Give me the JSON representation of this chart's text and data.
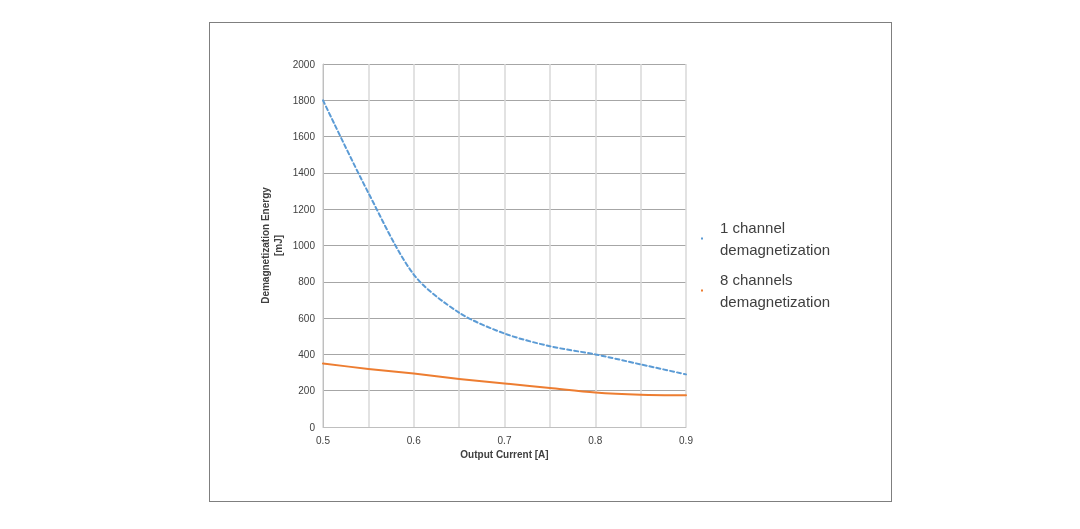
{
  "chart_data": {
    "type": "line",
    "xlabel": "Output Current [A]",
    "ylabel": "Demagnetization Energy\n[mJ]",
    "x": [
      0.5,
      0.55,
      0.6,
      0.65,
      0.7,
      0.75,
      0.8,
      0.85,
      0.9
    ],
    "series": [
      {
        "name": "1 channel demagnetization",
        "color": "#5b9bd5",
        "line_style": "dashed",
        "values": [
          1800,
          1290,
          840,
          630,
          515,
          445,
          400,
          345,
          290
        ]
      },
      {
        "name": "8 channels demagnetization",
        "color": "#ed7d31",
        "line_style": "solid",
        "values": [
          350,
          320,
          295,
          265,
          240,
          215,
          190,
          178,
          175
        ]
      }
    ],
    "xlim": [
      0.5,
      0.9
    ],
    "xticks": [
      0.5,
      {
        "value": 0.55,
        "label": null
      },
      0.6,
      {
        "value": 0.65,
        "label": null
      },
      0.7,
      {
        "value": 0.75,
        "label": null
      },
      0.8,
      {
        "value": 0.85,
        "label": null
      },
      0.9
    ],
    "ylim": [
      0,
      2000
    ],
    "yticks": [
      0,
      200,
      400,
      600,
      800,
      1000,
      1200,
      1400,
      1600,
      1800,
      2000
    ],
    "grid": true,
    "legend": "right",
    "marker": "none"
  }
}
